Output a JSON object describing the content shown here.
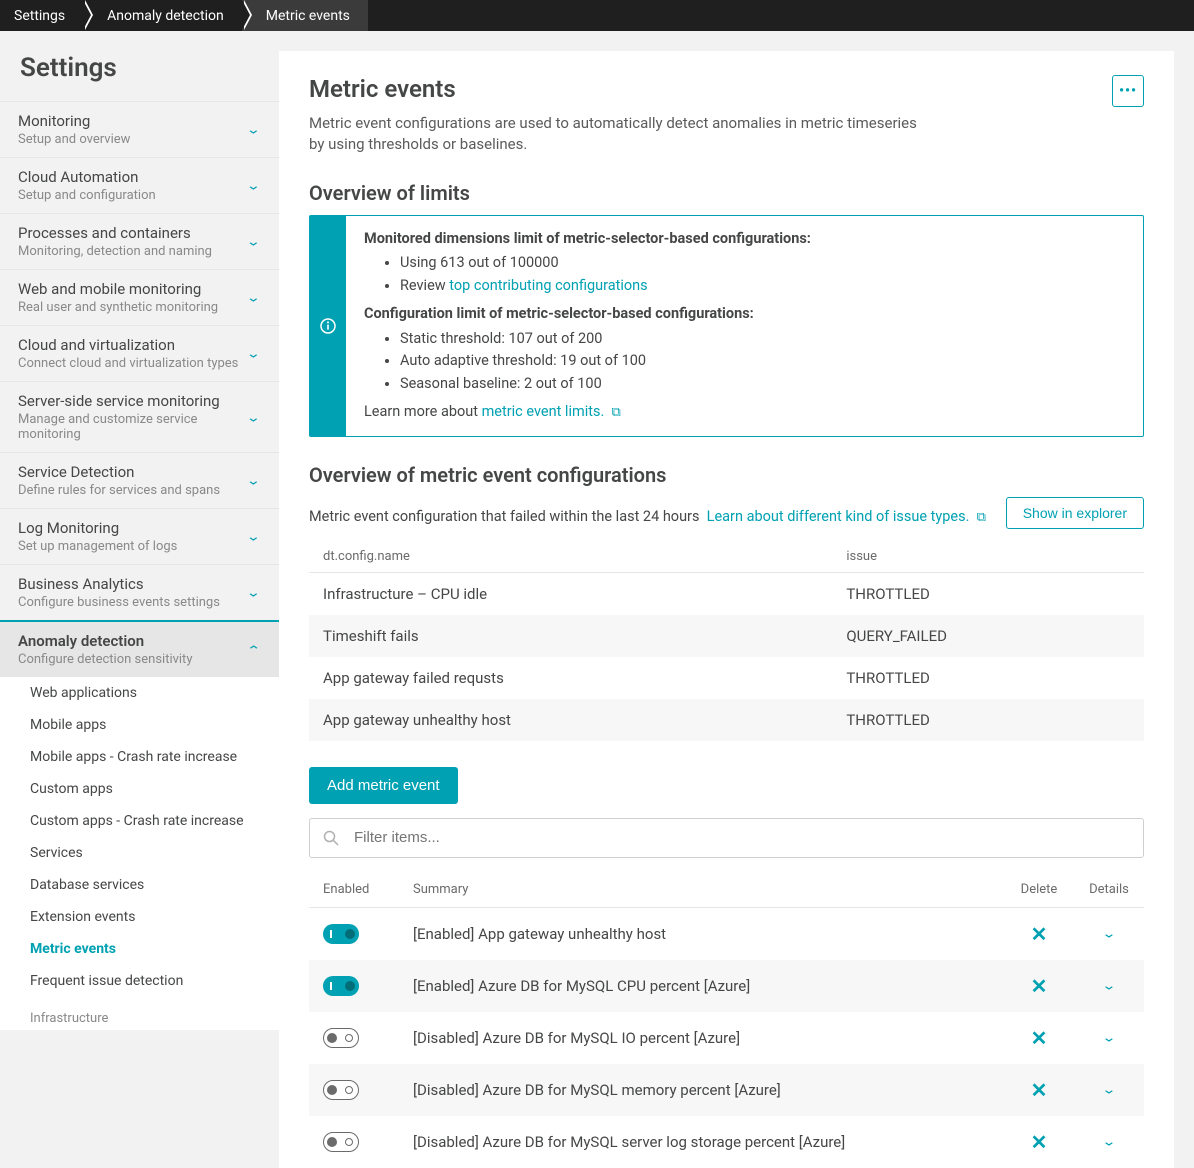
{
  "breadcrumb": [
    "Settings",
    "Anomaly detection",
    "Metric events"
  ],
  "sidebar": {
    "title": "Settings",
    "items": [
      {
        "label": "Monitoring",
        "sublabel": "Setup and overview"
      },
      {
        "label": "Cloud Automation",
        "sublabel": "Setup and configuration"
      },
      {
        "label": "Processes and containers",
        "sublabel": "Monitoring, detection and naming"
      },
      {
        "label": "Web and mobile monitoring",
        "sublabel": "Real user and synthetic monitoring"
      },
      {
        "label": "Cloud and virtualization",
        "sublabel": "Connect cloud and virtualization types"
      },
      {
        "label": "Server-side service monitoring",
        "sublabel": "Manage and customize service monitoring"
      },
      {
        "label": "Service Detection",
        "sublabel": "Define rules for services and spans"
      },
      {
        "label": "Log Monitoring",
        "sublabel": "Set up management of logs"
      },
      {
        "label": "Business Analytics",
        "sublabel": "Configure business events settings"
      },
      {
        "label": "Anomaly detection",
        "sublabel": "Configure detection sensitivity",
        "expanded": true
      }
    ],
    "subitems": [
      "Web applications",
      "Mobile apps",
      "Mobile apps - Crash rate increase",
      "Custom apps",
      "Custom apps - Crash rate increase",
      "Services",
      "Database services",
      "Extension events",
      "Metric events",
      "Frequent issue detection"
    ],
    "subitem_active_index": 8,
    "sub_section_header": "Infrastructure"
  },
  "page": {
    "title": "Metric events",
    "description": "Metric event configurations are used to automatically detect anomalies in metric timeseries by using thresholds or baselines."
  },
  "limits": {
    "heading": "Overview of limits",
    "dim_heading": "Monitored dimensions limit of metric-selector-based configurations:",
    "dim_usage": "Using 613 out of 100000",
    "dim_review_prefix": "Review ",
    "dim_review_link": "top contributing configurations",
    "config_heading": "Configuration limit of metric-selector-based configurations:",
    "static": "Static threshold: 107 out of 200",
    "auto": "Auto adaptive threshold: 19 out of 100",
    "seasonal": "Seasonal baseline: 2 out of 100",
    "learn_prefix": "Learn more about ",
    "learn_link": "metric event limits."
  },
  "overview": {
    "heading": "Overview of metric event configurations",
    "subtext": "Metric event configuration that failed within the last 24 hours",
    "learn_link": "Learn about different kind of issue types.",
    "show_btn": "Show in explorer",
    "columns": {
      "name": "dt.config.name",
      "issue": "issue"
    },
    "rows": [
      {
        "name": "Infrastructure – CPU idle",
        "issue": "THROTTLED"
      },
      {
        "name": "Timeshift fails",
        "issue": "QUERY_FAILED"
      },
      {
        "name": "App gateway failed requsts",
        "issue": "THROTTLED"
      },
      {
        "name": "App gateway unhealthy host",
        "issue": "THROTTLED"
      }
    ]
  },
  "events": {
    "add_btn": "Add metric event",
    "filter_placeholder": "Filter items...",
    "columns": {
      "enabled": "Enabled",
      "summary": "Summary",
      "delete": "Delete",
      "details": "Details"
    },
    "rows": [
      {
        "enabled": true,
        "summary": "[Enabled] App gateway unhealthy host"
      },
      {
        "enabled": true,
        "summary": "[Enabled] Azure DB for MySQL CPU percent [Azure]"
      },
      {
        "enabled": false,
        "summary": "[Disabled] Azure DB for MySQL IO percent [Azure]"
      },
      {
        "enabled": false,
        "summary": "[Disabled] Azure DB for MySQL memory percent [Azure]"
      },
      {
        "enabled": false,
        "summary": "[Disabled] Azure DB for MySQL server log storage percent [Azure]"
      }
    ]
  },
  "colors": {
    "accent": "#00a1b2",
    "breadcrumb_bg": "#1f1f1f",
    "breadcrumb_active_bg": "#3b3b3b",
    "page_bg": "#f2f2f2",
    "content_bg": "#ffffff",
    "border": "#e6e6e6",
    "text": "#454646",
    "muted": "#898989"
  }
}
